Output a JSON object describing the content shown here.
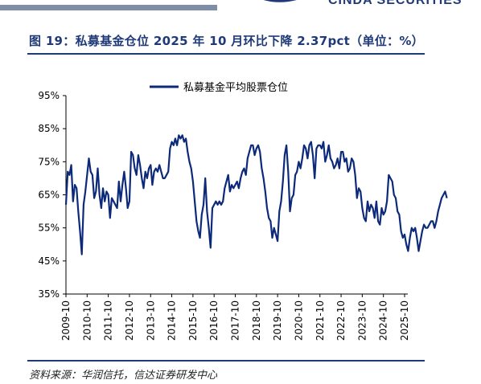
{
  "header": {
    "brand_text": "CINDA SECURITIES",
    "title": "图 19：私募基金仓位 2025 年 10 月环比下降 2.37pct（单位：%）"
  },
  "source": "资料来源：华润信托，信达证券研发中心",
  "colors": {
    "accent": "#1f3a78",
    "line": "#0d2a7a",
    "axis": "#000000"
  },
  "chart_data": {
    "type": "line",
    "title": "",
    "xlabel": "",
    "ylabel": "",
    "ylim": [
      35,
      95
    ],
    "y_ticks": [
      "35%",
      "45%",
      "55%",
      "65%",
      "75%",
      "85%",
      "95%"
    ],
    "x_ticks": [
      "2009-10",
      "2010-10",
      "2011-10",
      "2012-10",
      "2013-10",
      "2014-10",
      "2015-10",
      "2016-10",
      "2017-10",
      "2018-10",
      "2019-10",
      "2020-10",
      "2021-10",
      "2022-10",
      "2023-10",
      "2024-10",
      "2025-10"
    ],
    "legend": "top-center",
    "grid": false,
    "series": [
      {
        "name": "私募基金平均股票仓位",
        "start": "2009-10",
        "values": [
          62,
          72,
          71,
          74,
          63,
          68,
          67,
          60,
          54,
          47,
          62,
          66,
          71,
          76,
          72,
          71,
          64,
          66,
          73,
          65,
          61,
          67,
          63,
          66,
          65,
          58,
          64,
          63,
          62,
          61,
          69,
          63,
          68,
          72,
          67,
          61,
          63,
          78,
          77,
          73,
          71,
          77,
          74,
          70,
          67,
          72,
          70,
          73,
          74,
          68,
          72,
          73,
          72,
          74,
          72,
          70,
          70,
          71,
          72,
          79,
          81,
          80,
          82,
          80,
          83,
          82,
          83,
          81,
          82,
          78,
          75,
          73,
          69,
          63,
          57,
          54,
          52,
          59,
          62,
          70,
          60,
          55,
          49,
          61,
          62,
          63,
          62,
          63,
          62,
          63,
          67,
          69,
          71,
          66,
          68,
          67,
          68,
          69,
          67,
          70,
          72,
          73,
          71,
          76,
          78,
          80,
          80,
          77,
          79,
          80,
          78,
          73,
          70,
          66,
          61,
          58,
          57,
          52,
          55,
          53,
          51,
          60,
          63,
          69,
          77,
          80,
          72,
          60,
          64,
          65,
          71,
          72,
          75,
          73,
          76,
          80,
          79,
          76,
          80,
          81,
          77,
          70,
          79,
          80,
          80,
          79,
          81,
          75,
          77,
          80,
          76,
          75,
          73,
          74,
          76,
          73,
          78,
          78,
          75,
          76,
          72,
          73,
          76,
          75,
          71,
          64,
          67,
          66,
          61,
          58,
          57,
          63,
          60,
          62,
          61,
          58,
          63,
          57,
          56,
          61,
          59,
          60,
          63,
          71,
          70,
          69,
          65,
          64,
          60,
          59,
          54,
          52,
          53,
          50,
          48,
          52,
          55,
          54,
          55,
          52,
          48,
          51,
          54,
          56,
          55,
          55,
          56,
          57,
          57,
          55,
          57,
          60,
          62,
          64,
          65,
          66,
          64
        ]
      }
    ]
  }
}
